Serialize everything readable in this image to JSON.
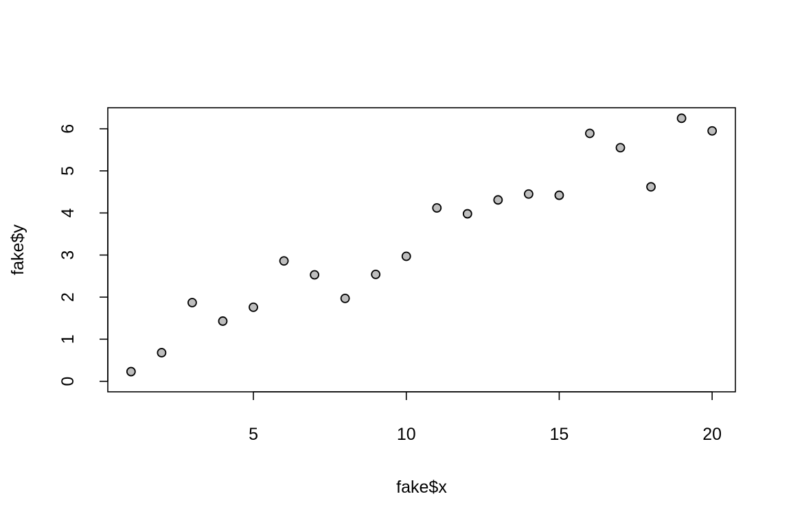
{
  "chart_data": {
    "type": "scatter",
    "xlabel": "fake$x",
    "ylabel": "fake$y",
    "xlim": [
      0.24,
      20.76
    ],
    "ylim": [
      -0.25,
      6.5
    ],
    "x_ticks": [
      5,
      10,
      15,
      20
    ],
    "y_ticks": [
      0,
      1,
      2,
      3,
      4,
      5,
      6
    ],
    "x_tick_labels": [
      "5",
      "10",
      "15",
      "20"
    ],
    "y_tick_labels": [
      "0",
      "1",
      "2",
      "3",
      "4",
      "5",
      "6"
    ],
    "grid": false,
    "point_fill": "#bebebe",
    "point_stroke": "#000000",
    "x": [
      1,
      2,
      3,
      4,
      5,
      6,
      7,
      8,
      9,
      10,
      11,
      12,
      13,
      14,
      15,
      16,
      17,
      18,
      19,
      20
    ],
    "y": [
      0.23,
      0.68,
      1.87,
      1.43,
      1.76,
      2.86,
      2.53,
      1.97,
      2.54,
      2.97,
      4.12,
      3.98,
      4.31,
      4.45,
      4.42,
      5.89,
      5.55,
      4.62,
      6.25,
      5.95
    ]
  }
}
